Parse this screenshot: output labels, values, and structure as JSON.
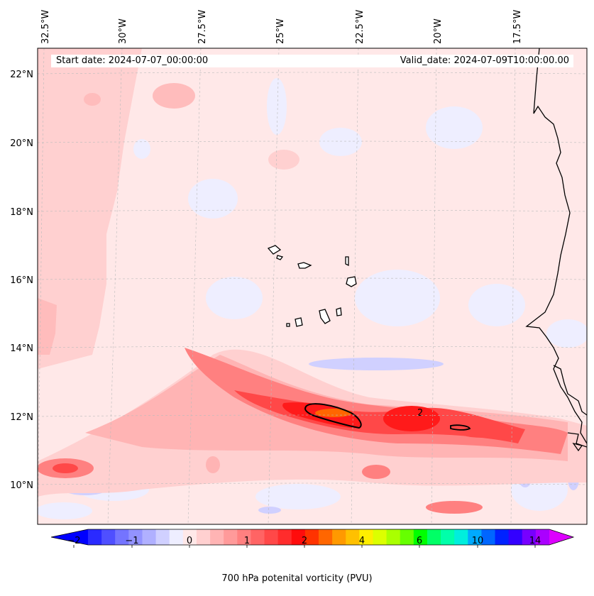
{
  "header": {
    "start_date": "Start date: 2024-07-07_00:00:00",
    "valid_date": "Valid_date: 2024-07-09T10:00:00.00"
  },
  "map": {
    "lon_labels": [
      "32.5°W",
      "30°W",
      "27.5°W",
      "25°W",
      "22.5°W",
      "20°W",
      "17.5°W"
    ],
    "lat_labels": [
      "22°N",
      "20°N",
      "18°N",
      "16°N",
      "14°N",
      "12°N",
      "10°N"
    ],
    "contour_label": "2",
    "field": "700 hPa potential vorticity",
    "gridlines": true
  },
  "colorbar": {
    "title": "700 hPa potenital vorticity (PVU)",
    "tick_labels": [
      "−2",
      "−1",
      "0",
      "1",
      "2",
      "4",
      "6",
      "10",
      "14"
    ],
    "extend": "both",
    "colors": [
      "#0000ff",
      "#2a2aff",
      "#4f4fff",
      "#7474ff",
      "#9393ff",
      "#b0b0ff",
      "#d0d0ff",
      "#eeeeff",
      "#ffe8e8",
      "#ffd0d0",
      "#ffb4b4",
      "#ff9a9a",
      "#ff8080",
      "#ff6464",
      "#ff4848",
      "#ff2c2c",
      "#ff0c0c",
      "#ff3300",
      "#ff6600",
      "#ff9900",
      "#ffc000",
      "#ffee00",
      "#dcff00",
      "#aaff00",
      "#66ff00",
      "#00ff00",
      "#00ff66",
      "#00ffaa",
      "#00eedd",
      "#00aaff",
      "#0066ff",
      "#0022ff",
      "#3300ff",
      "#7700ff",
      "#aa00ff",
      "#dd00ff"
    ]
  }
}
